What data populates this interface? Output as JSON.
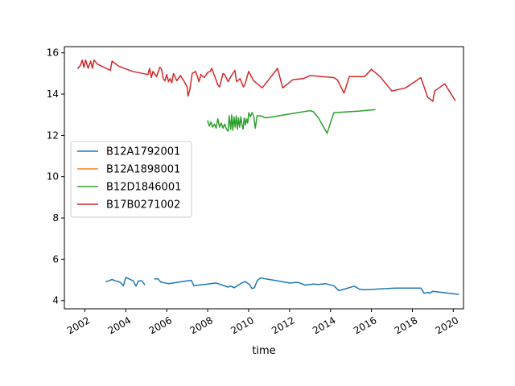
{
  "chart_data": {
    "type": "line",
    "title": "",
    "xlabel": "time",
    "ylabel": "",
    "xlim": [
      "2001-01-01",
      "2020-07-01"
    ],
    "ylim": [
      3.6,
      16.3
    ],
    "grid": false,
    "legend_position": "center-left",
    "x_ticks": [
      "2002",
      "2004",
      "2006",
      "2008",
      "2010",
      "2012",
      "2014",
      "2016",
      "2018",
      "2020"
    ],
    "y_ticks": [
      4,
      6,
      8,
      10,
      12,
      14,
      16
    ],
    "series": [
      {
        "name": "B12A1792001",
        "color": "#1f77b4",
        "segments": [
          [
            [
              "2003-01-15",
              4.92
            ],
            [
              "2003-03-01",
              4.95
            ],
            [
              "2003-05-01",
              5.02
            ],
            [
              "2003-07-01",
              4.95
            ],
            [
              "2003-09-15",
              4.9
            ],
            [
              "2003-11-20",
              4.72
            ],
            [
              "2004-01-01",
              5.12
            ],
            [
              "2004-03-01",
              5.05
            ],
            [
              "2004-05-15",
              4.95
            ],
            [
              "2004-07-01",
              4.7
            ],
            [
              "2004-08-15",
              4.95
            ],
            [
              "2004-10-15",
              4.95
            ],
            [
              "2004-12-01",
              4.78
            ]
          ],
          [
            [
              "2005-06-01",
              5.05
            ],
            [
              "2005-08-01",
              5.05
            ],
            [
              "2005-09-15",
              4.9
            ],
            [
              "2006-02-01",
              4.82
            ],
            [
              "2007-01-01",
              4.95
            ],
            [
              "2007-03-15",
              4.98
            ],
            [
              "2007-05-01",
              4.72
            ],
            [
              "2008-01-01",
              4.8
            ],
            [
              "2008-06-01",
              4.85
            ],
            [
              "2009-01-01",
              4.65
            ],
            [
              "2009-02-15",
              4.7
            ],
            [
              "2009-04-15",
              4.62
            ],
            [
              "2009-06-15",
              4.72
            ],
            [
              "2009-09-01",
              4.85
            ],
            [
              "2009-11-01",
              4.92
            ],
            [
              "2010-01-15",
              4.78
            ],
            [
              "2010-03-01",
              4.58
            ],
            [
              "2010-04-15",
              4.62
            ],
            [
              "2010-06-01",
              4.95
            ],
            [
              "2010-08-01",
              5.1
            ],
            [
              "2010-11-01",
              5.05
            ],
            [
              "2011-06-01",
              4.95
            ],
            [
              "2012-01-01",
              4.85
            ],
            [
              "2012-06-01",
              4.88
            ],
            [
              "2012-10-01",
              4.75
            ],
            [
              "2013-03-01",
              4.8
            ],
            [
              "2013-06-01",
              4.78
            ],
            [
              "2013-10-01",
              4.82
            ],
            [
              "2014-03-01",
              4.72
            ],
            [
              "2014-06-01",
              4.48
            ],
            [
              "2014-09-01",
              4.55
            ],
            [
              "2015-03-01",
              4.7
            ],
            [
              "2015-06-01",
              4.55
            ],
            [
              "2015-09-01",
              4.52
            ],
            [
              "2017-03-01",
              4.6
            ],
            [
              "2018-06-01",
              4.6
            ],
            [
              "2018-08-01",
              4.35
            ],
            [
              "2018-10-01",
              4.4
            ],
            [
              "2018-11-01",
              4.35
            ],
            [
              "2019-01-01",
              4.45
            ],
            [
              "2019-04-01",
              4.42
            ],
            [
              "2020-04-01",
              4.3
            ]
          ]
        ]
      },
      {
        "name": "B12A1898001",
        "color": "#ff7f0e",
        "segments": []
      },
      {
        "name": "B12D1846001",
        "color": "#2ca02c",
        "segments": [
          [
            [
              "2008-01-01",
              12.7
            ],
            [
              "2008-02-01",
              12.45
            ],
            [
              "2008-03-01",
              12.65
            ],
            [
              "2008-04-01",
              12.4
            ],
            [
              "2008-05-01",
              12.55
            ],
            [
              "2008-06-01",
              12.35
            ],
            [
              "2008-07-01",
              12.8
            ],
            [
              "2008-08-01",
              12.4
            ],
            [
              "2008-09-01",
              12.6
            ],
            [
              "2008-10-01",
              12.35
            ],
            [
              "2008-11-01",
              12.55
            ],
            [
              "2008-12-01",
              12.3
            ],
            [
              "2009-01-01",
              12.2
            ],
            [
              "2009-01-20",
              12.95
            ],
            [
              "2009-02-15",
              12.3
            ],
            [
              "2009-03-05",
              13.0
            ],
            [
              "2009-03-25",
              12.25
            ],
            [
              "2009-04-15",
              12.9
            ],
            [
              "2009-05-05",
              12.4
            ],
            [
              "2009-05-25",
              12.95
            ],
            [
              "2009-06-15",
              12.3
            ],
            [
              "2009-07-05",
              12.85
            ],
            [
              "2009-07-25",
              12.4
            ],
            [
              "2009-08-15",
              12.9
            ],
            [
              "2009-09-05",
              12.5
            ],
            [
              "2009-09-25",
              12.3
            ],
            [
              "2009-10-15",
              12.85
            ],
            [
              "2009-11-05",
              12.5
            ],
            [
              "2009-11-25",
              12.8
            ],
            [
              "2009-12-15",
              12.6
            ],
            [
              "2010-01-05",
              13.1
            ],
            [
              "2010-02-01",
              12.9
            ],
            [
              "2010-03-01",
              13.1
            ],
            [
              "2010-04-01",
              12.95
            ],
            [
              "2010-05-01",
              12.35
            ],
            [
              "2010-06-01",
              12.95
            ],
            [
              "2010-08-01",
              12.95
            ],
            [
              "2010-11-01",
              12.85
            ],
            [
              "2013-01-01",
              13.2
            ],
            [
              "2013-03-01",
              13.15
            ],
            [
              "2013-06-01",
              12.85
            ],
            [
              "2013-11-01",
              12.1
            ],
            [
              "2014-03-01",
              13.1
            ],
            [
              "2015-06-01",
              13.18
            ],
            [
              "2016-03-01",
              13.25
            ]
          ]
        ]
      },
      {
        "name": "B17B0271002",
        "color": "#d62728",
        "segments": [
          [
            [
              "2001-09-01",
              15.25
            ],
            [
              "2001-10-15",
              15.4
            ],
            [
              "2001-11-15",
              15.65
            ],
            [
              "2001-12-15",
              15.3
            ],
            [
              "2002-01-15",
              15.65
            ],
            [
              "2002-03-01",
              15.25
            ],
            [
              "2002-04-15",
              15.6
            ],
            [
              "2002-05-15",
              15.25
            ],
            [
              "2002-06-15",
              15.65
            ],
            [
              "2002-08-15",
              15.45
            ],
            [
              "2003-04-01",
              15.15
            ],
            [
              "2003-05-01",
              15.6
            ],
            [
              "2003-09-01",
              15.35
            ],
            [
              "2004-05-01",
              15.1
            ],
            [
              "2005-02-01",
              14.95
            ],
            [
              "2005-03-01",
              15.25
            ],
            [
              "2005-04-01",
              14.8
            ],
            [
              "2005-05-01",
              15.1
            ],
            [
              "2005-07-01",
              14.85
            ],
            [
              "2005-09-01",
              15.3
            ],
            [
              "2005-10-01",
              15.2
            ],
            [
              "2005-11-01",
              14.75
            ],
            [
              "2005-12-01",
              14.65
            ],
            [
              "2006-01-01",
              14.95
            ],
            [
              "2006-02-01",
              14.6
            ],
            [
              "2006-03-01",
              14.75
            ],
            [
              "2006-04-01",
              14.55
            ],
            [
              "2006-05-01",
              15.0
            ],
            [
              "2006-07-01",
              14.65
            ],
            [
              "2006-09-01",
              14.9
            ],
            [
              "2006-11-01",
              14.65
            ],
            [
              "2007-01-01",
              14.35
            ],
            [
              "2007-01-15",
              13.9
            ],
            [
              "2007-02-15",
              14.2
            ],
            [
              "2007-04-01",
              15.0
            ],
            [
              "2007-06-01",
              15.1
            ],
            [
              "2007-07-01",
              14.85
            ],
            [
              "2007-08-01",
              14.6
            ],
            [
              "2007-09-01",
              14.95
            ],
            [
              "2007-11-01",
              14.8
            ],
            [
              "2008-01-01",
              15.05
            ],
            [
              "2008-02-15",
              15.1
            ],
            [
              "2008-03-15",
              15.25
            ],
            [
              "2008-04-15",
              15.0
            ],
            [
              "2008-05-15",
              14.8
            ],
            [
              "2008-07-01",
              14.45
            ],
            [
              "2008-08-01",
              14.35
            ],
            [
              "2008-10-01",
              15.0
            ],
            [
              "2008-11-01",
              14.95
            ],
            [
              "2009-01-01",
              14.6
            ],
            [
              "2009-03-01",
              14.9
            ],
            [
              "2009-05-01",
              15.15
            ],
            [
              "2009-06-01",
              14.6
            ],
            [
              "2009-08-01",
              14.75
            ],
            [
              "2009-10-01",
              14.35
            ],
            [
              "2009-11-01",
              14.5
            ],
            [
              "2010-01-01",
              15.1
            ],
            [
              "2010-04-01",
              14.65
            ],
            [
              "2010-09-01",
              14.3
            ],
            [
              "2011-06-01",
              15.25
            ],
            [
              "2011-09-01",
              14.3
            ],
            [
              "2012-03-01",
              14.7
            ],
            [
              "2012-09-01",
              14.75
            ],
            [
              "2013-01-01",
              14.9
            ],
            [
              "2014-03-01",
              14.8
            ],
            [
              "2014-05-01",
              14.7
            ],
            [
              "2014-09-01",
              14.05
            ],
            [
              "2014-12-01",
              14.85
            ],
            [
              "2015-09-01",
              14.85
            ],
            [
              "2016-01-01",
              15.2
            ],
            [
              "2016-06-01",
              14.85
            ],
            [
              "2017-01-01",
              14.15
            ],
            [
              "2017-09-01",
              14.3
            ],
            [
              "2018-06-01",
              14.8
            ],
            [
              "2018-10-01",
              13.85
            ],
            [
              "2019-01-01",
              13.65
            ],
            [
              "2019-02-01",
              14.15
            ],
            [
              "2019-08-01",
              14.5
            ],
            [
              "2020-02-01",
              13.7
            ]
          ]
        ]
      }
    ]
  }
}
